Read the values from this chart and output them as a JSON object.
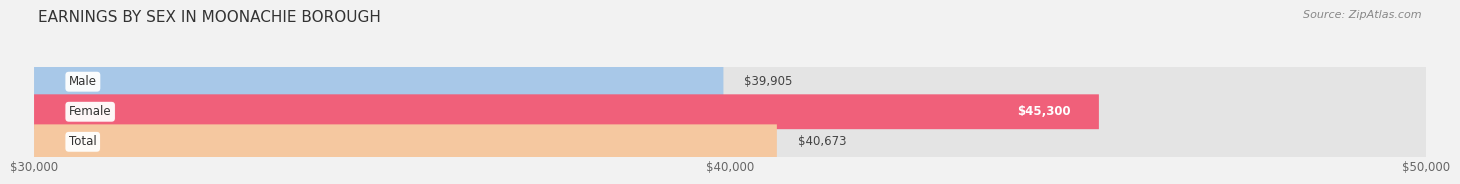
{
  "title": "EARNINGS BY SEX IN MOONACHIE BOROUGH",
  "source": "Source: ZipAtlas.com",
  "categories": [
    "Male",
    "Female",
    "Total"
  ],
  "values": [
    39905,
    45300,
    40673
  ],
  "bar_colors": [
    "#a8c8e8",
    "#f0607a",
    "#f5c8a0"
  ],
  "bar_bg_color": "#e4e4e4",
  "label_bg_colors": [
    "#a8c8e8",
    "#f0607a",
    "#f5c8a0"
  ],
  "value_label_colors": [
    "#444444",
    "#ffffff",
    "#444444"
  ],
  "value_labels": [
    "$39,905",
    "$45,300",
    "$40,673"
  ],
  "xlim": [
    30000,
    50000
  ],
  "xticks": [
    30000,
    40000,
    50000
  ],
  "xtick_labels": [
    "$30,000",
    "$40,000",
    "$50,000"
  ],
  "title_fontsize": 11,
  "bar_height": 0.58,
  "background_color": "#f2f2f2"
}
